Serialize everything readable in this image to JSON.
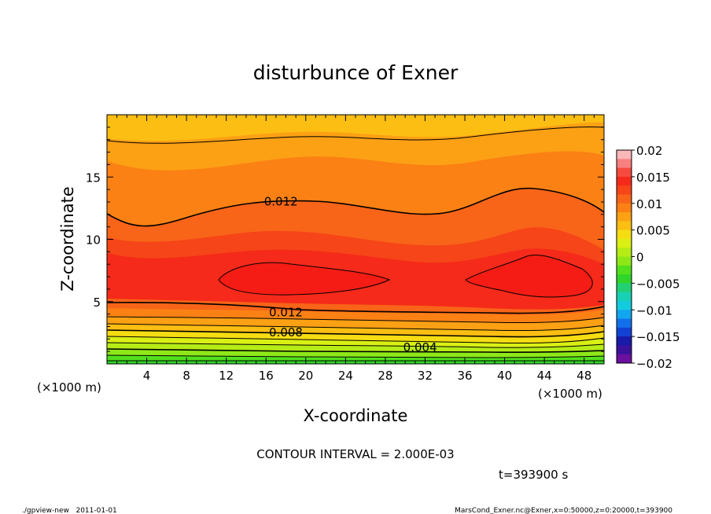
{
  "chart_data": {
    "type": "contour",
    "title": "disturbunce of Exner",
    "xlabel": "X-coordinate",
    "ylabel": "Z-coordinate",
    "x_unit": "(×1000 m)",
    "y_unit": "(×1000 m)",
    "xlim": [
      0,
      50
    ],
    "ylim": [
      0,
      20
    ],
    "x_ticks": [
      4,
      8,
      12,
      16,
      20,
      24,
      28,
      32,
      36,
      40,
      44,
      48
    ],
    "y_ticks": [
      5,
      10,
      15
    ],
    "contour_interval_label": "CONTOUR INTERVAL = 2.000E-03",
    "time_label": "t=393900 s",
    "contour_labels": [
      {
        "text": "0.012",
        "x": 17.5,
        "z": 13.1
      },
      {
        "text": "0.012",
        "x": 18.0,
        "z": 4.2
      },
      {
        "text": "0.008",
        "x": 18.0,
        "z": 2.6
      },
      {
        "text": "0.004",
        "x": 31.5,
        "z": 1.4
      }
    ],
    "colorbar": {
      "ticks": [
        "0.02",
        "0.015",
        "0.01",
        "0.005",
        "0",
        "−0.005",
        "−0.01",
        "−0.015",
        "−0.02"
      ],
      "colors": [
        "#fbb8b8",
        "#f88080",
        "#f64a3e",
        "#f52a1a",
        "#f64518",
        "#f86418",
        "#fb8114",
        "#fca014",
        "#fcbe12",
        "#f6dc12",
        "#daf014",
        "#b6ec16",
        "#8ee818",
        "#52e01c",
        "#30d42a",
        "#22d074",
        "#18d0b4",
        "#12ccde",
        "#12a6ee",
        "#1270ea",
        "#1242d4",
        "#1a1aa8",
        "#3a129c",
        "#6a0f9e"
      ],
      "colors_top_to_bottom": true
    },
    "approx_field": {
      "levels": [
        0.0,
        0.002,
        0.004,
        0.006,
        0.008,
        0.01,
        0.012,
        0.014,
        0.016
      ],
      "comment_levels": "band colors from low to high"
    }
  },
  "footer": {
    "left": "./gpview-new   2011-01-01",
    "right": "MarsCond_Exner.nc@Exner,x=0:50000,z=0:20000,t=393900"
  }
}
